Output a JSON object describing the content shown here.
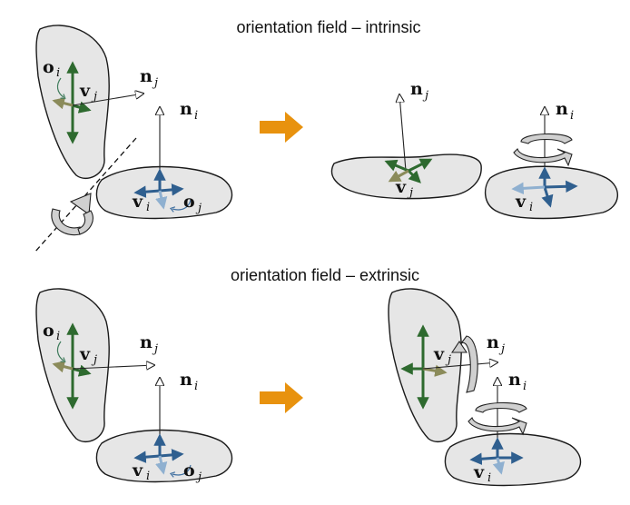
{
  "titles": {
    "top": "orientation field – intrinsic",
    "bottom": "orientation field – extrinsic"
  },
  "labels": {
    "o": "o",
    "v": "v",
    "n": "n",
    "sub_i": "i",
    "sub_j": "j"
  },
  "colors": {
    "green": "#2e6a2f",
    "olive": "#8b8b5a",
    "blue": "#2f5f8f",
    "lightblue": "#8fb0d0",
    "orange": "#e8920e",
    "patch": "#e6e6e6"
  }
}
